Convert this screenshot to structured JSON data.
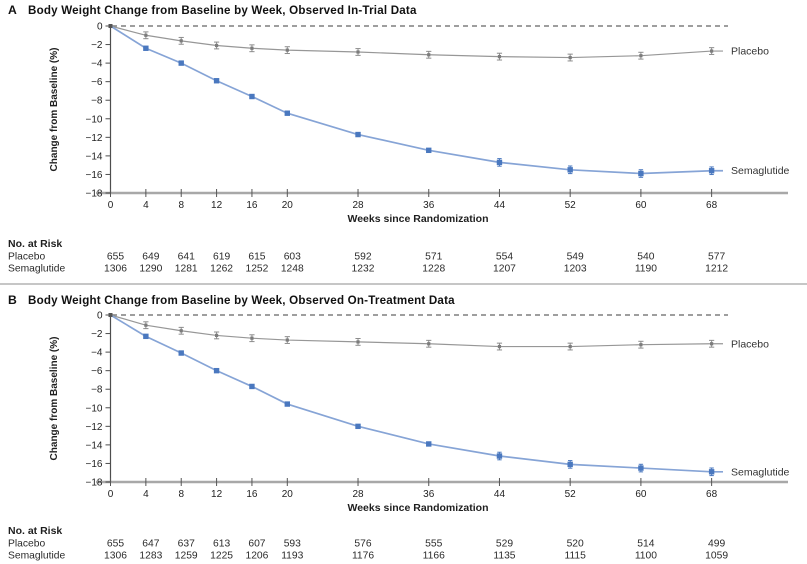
{
  "chart_data": [
    {
      "type": "line",
      "panel_letter": "A",
      "title": "Body Weight Change from Baseline by Week, Observed In-Trial Data",
      "xlabel": "Weeks since Randomization",
      "ylabel": "Change from Baseline (%)",
      "x": [
        0,
        4,
        8,
        12,
        16,
        20,
        28,
        36,
        44,
        52,
        60,
        68
      ],
      "ylim": [
        -18,
        0
      ],
      "ytick_interval": 2,
      "zero_reference_line": true,
      "legend_position": "right-of-line-ends",
      "colors": {
        "placebo": "#8c8c8c",
        "semaglutide": "#4a78bf"
      },
      "series": [
        {
          "name": "Placebo",
          "color": "#8c8c8c",
          "marker": "error-bar",
          "values": [
            0,
            -1.0,
            -1.6,
            -2.1,
            -2.4,
            -2.6,
            -2.8,
            -3.1,
            -3.3,
            -3.4,
            -3.2,
            -2.7
          ]
        },
        {
          "name": "Semaglutide",
          "color": "#4a78bf",
          "marker": "square",
          "values": [
            0,
            -2.4,
            -4.0,
            -5.9,
            -7.6,
            -9.4,
            -11.7,
            -13.4,
            -14.7,
            -15.5,
            -15.9,
            -15.6
          ]
        }
      ],
      "no_at_risk": {
        "header": "No. at Risk",
        "rows": [
          {
            "label": "Placebo",
            "values": [
              655,
              649,
              641,
              619,
              615,
              603,
              592,
              571,
              554,
              549,
              540,
              577
            ]
          },
          {
            "label": "Semaglutide",
            "values": [
              1306,
              1290,
              1281,
              1262,
              1252,
              1248,
              1232,
              1228,
              1207,
              1203,
              1190,
              1212
            ]
          }
        ]
      }
    },
    {
      "type": "line",
      "panel_letter": "B",
      "title": "Body Weight Change from Baseline by Week, Observed On-Treatment Data",
      "xlabel": "Weeks since Randomization",
      "ylabel": "Change from Baseline (%)",
      "x": [
        0,
        4,
        8,
        12,
        16,
        20,
        28,
        36,
        44,
        52,
        60,
        68
      ],
      "ylim": [
        -18,
        0
      ],
      "ytick_interval": 2,
      "zero_reference_line": true,
      "legend_position": "right-of-line-ends",
      "colors": {
        "placebo": "#8c8c8c",
        "semaglutide": "#4a78bf"
      },
      "series": [
        {
          "name": "Placebo",
          "color": "#8c8c8c",
          "marker": "error-bar",
          "values": [
            0,
            -1.1,
            -1.7,
            -2.2,
            -2.5,
            -2.7,
            -2.9,
            -3.1,
            -3.4,
            -3.4,
            -3.2,
            -3.1
          ]
        },
        {
          "name": "Semaglutide",
          "color": "#4a78bf",
          "marker": "square",
          "values": [
            0,
            -2.3,
            -4.1,
            -6.0,
            -7.7,
            -9.6,
            -12.0,
            -13.9,
            -15.2,
            -16.1,
            -16.5,
            -16.9
          ]
        }
      ],
      "no_at_risk": {
        "header": "No. at Risk",
        "rows": [
          {
            "label": "Placebo",
            "values": [
              655,
              647,
              637,
              613,
              607,
              593,
              576,
              555,
              529,
              520,
              514,
              499
            ]
          },
          {
            "label": "Semaglutide",
            "values": [
              1306,
              1283,
              1259,
              1225,
              1206,
              1193,
              1176,
              1166,
              1135,
              1115,
              1100,
              1059
            ]
          }
        ]
      }
    }
  ]
}
